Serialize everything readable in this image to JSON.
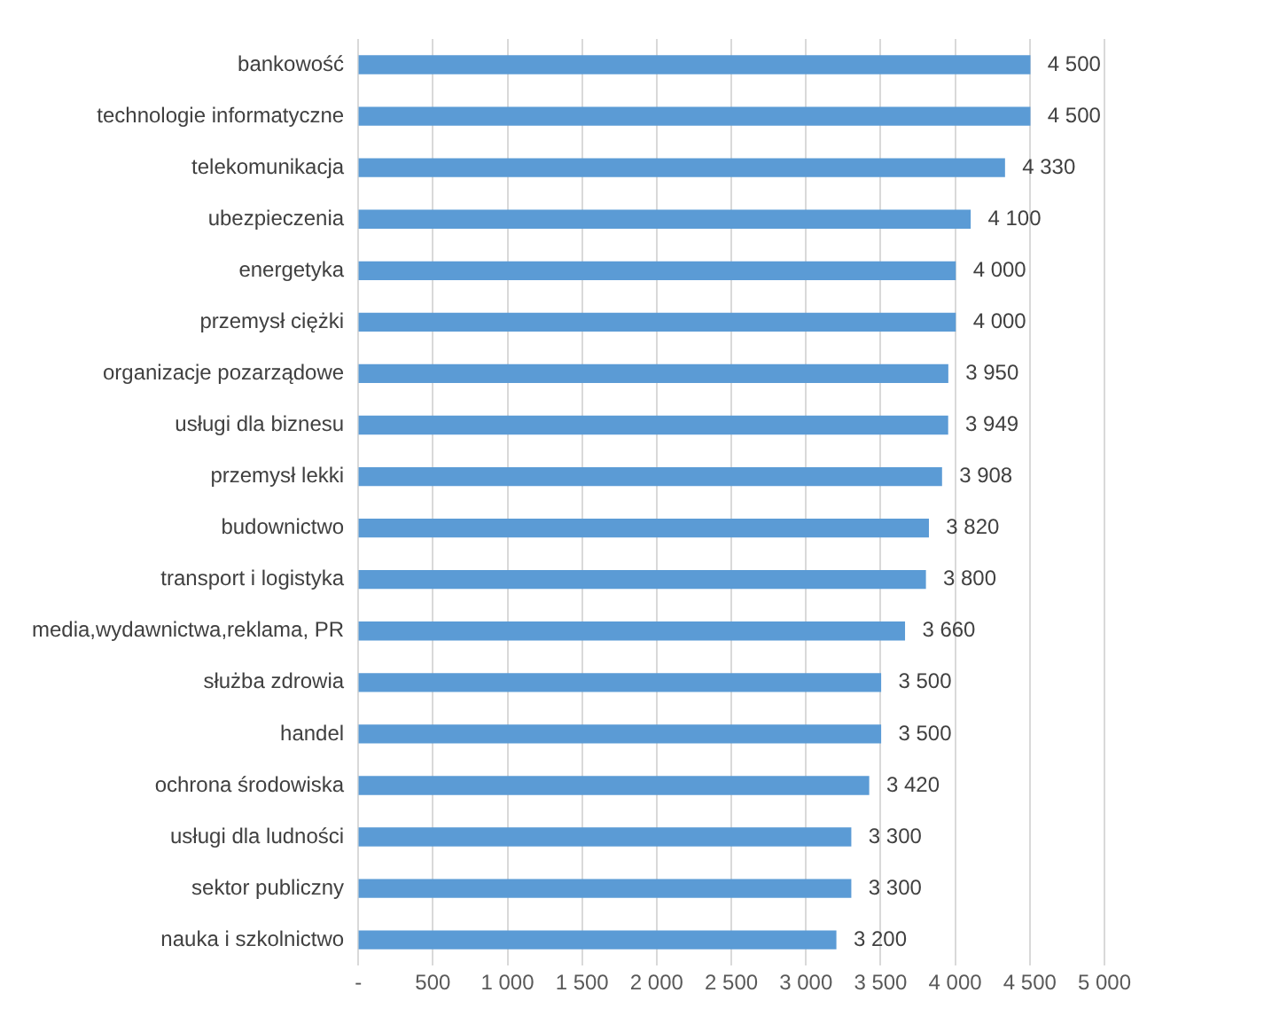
{
  "chart_data": {
    "type": "bar",
    "orientation": "horizontal",
    "categories": [
      "bankowość",
      "technologie informatyczne",
      "telekomunikacja",
      "ubezpieczenia",
      "energetyka",
      "przemysł ciężki",
      "organizacje pozarządowe",
      "usługi dla biznesu",
      "przemysł lekki",
      "budownictwo",
      "transport i logistyka",
      "media,wydawnictwa,reklama, PR",
      "służba zdrowia",
      "handel",
      "ochrona środowiska",
      "usługi dla ludności",
      "sektor publiczny",
      "nauka i szkolnictwo"
    ],
    "values": [
      4500,
      4500,
      4330,
      4100,
      4000,
      4000,
      3950,
      3949,
      3908,
      3820,
      3800,
      3660,
      3500,
      3500,
      3420,
      3300,
      3300,
      3200
    ],
    "value_labels": [
      "4 500",
      "4 500",
      "4 330",
      "4 100",
      "4 000",
      "4 000",
      "3 950",
      "3 949",
      "3 908",
      "3 820",
      "3 800",
      "3 660",
      "3 500",
      "3 500",
      "3 420",
      "3 300",
      "3 300",
      "3 200"
    ],
    "color": "#5b9bd5",
    "xlim": [
      0,
      5000
    ],
    "xticks": [
      {
        "value": 0,
        "label": "-"
      },
      500,
      {
        "value": 1000,
        "label": "1 000"
      },
      {
        "value": 1500,
        "label": "1 500"
      },
      {
        "value": 2000,
        "label": "2 000"
      },
      {
        "value": 2500,
        "label": "2 500"
      },
      {
        "value": 3000,
        "label": "3 000"
      },
      {
        "value": 3500,
        "label": "3 500"
      },
      {
        "value": 4000,
        "label": "4 000"
      },
      {
        "value": 4500,
        "label": "4 500"
      },
      {
        "value": 5000,
        "label": "5 000"
      }
    ],
    "grid": "x",
    "legend": false
  }
}
